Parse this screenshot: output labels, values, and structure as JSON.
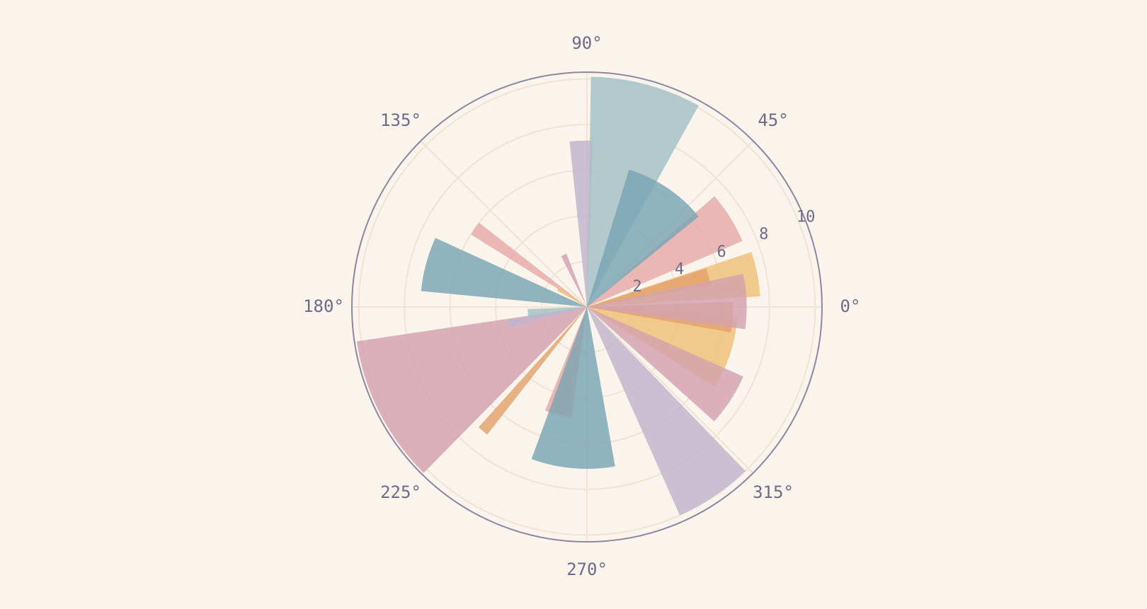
{
  "chart_data": {
    "type": "polar-bar",
    "title": "",
    "angular_axis": {
      "tick_values": [
        0,
        45,
        90,
        135,
        180,
        225,
        270,
        315
      ],
      "tick_labels": [
        "0°",
        "45°",
        "90°",
        "135°",
        "180°",
        "225°",
        "270°",
        "315°"
      ],
      "direction": "counterclockwise",
      "zero_at": "right"
    },
    "radial_axis": {
      "range": [
        0,
        10.3
      ],
      "tick_values": [
        2,
        4,
        6,
        8,
        10
      ],
      "tick_labels": [
        "2",
        "4",
        "6",
        "8",
        "10"
      ],
      "tick_angle_deg": 22.5
    },
    "grid": true,
    "legend": "none",
    "colors": {
      "background": "#faf4ec",
      "frame": "#8b88a0",
      "grid": "#efe3d3"
    },
    "series": [
      {
        "color": "#e8a9a7",
        "bars": [
          {
            "theta": 32,
            "width": 18,
            "r": 7.4
          },
          {
            "theta": 145,
            "width": 6,
            "r": 6.0
          },
          {
            "theta": 255,
            "width": 14,
            "r": 4.9
          }
        ]
      },
      {
        "color": "#f0bf78",
        "bars": [
          {
            "theta": 11,
            "width": 15,
            "r": 7.6
          },
          {
            "theta": 148,
            "width": 7,
            "r": 1.5
          },
          {
            "theta": 342,
            "width": 28,
            "r": 6.6
          }
        ]
      },
      {
        "color": "#e3a26c",
        "bars": [
          {
            "theta": 14,
            "width": 8,
            "r": 5.5
          },
          {
            "theta": 356,
            "width": 12,
            "r": 6.4
          },
          {
            "theta": 230,
            "width": 4,
            "r": 7.1
          }
        ]
      },
      {
        "color": "#d3a2af",
        "bars": [
          {
            "theta": 2,
            "width": 20,
            "r": 7.0
          },
          {
            "theta": 327,
            "width": 18,
            "r": 7.5
          },
          {
            "theta": 207,
            "width": 37,
            "r": 10.2
          },
          {
            "theta": 114,
            "width": 6,
            "r": 2.5
          }
        ]
      },
      {
        "color": "#c1b3cc",
        "bars": [
          {
            "theta": 92,
            "width": 8,
            "r": 7.3
          },
          {
            "theta": 304,
            "width": 20,
            "r": 10.0
          },
          {
            "theta": 192,
            "width": 6,
            "r": 3.5
          }
        ]
      },
      {
        "color": "#a3c1c6",
        "bars": [
          {
            "theta": 75,
            "width": 28,
            "r": 10.1
          },
          {
            "theta": 186,
            "width": 8,
            "r": 2.6
          }
        ]
      },
      {
        "color": "#7aa5b3",
        "bars": [
          {
            "theta": 56,
            "width": 34,
            "r": 6.3
          },
          {
            "theta": 165,
            "width": 19,
            "r": 7.3
          },
          {
            "theta": 265,
            "width": 30,
            "r": 7.1
          }
        ]
      }
    ]
  }
}
